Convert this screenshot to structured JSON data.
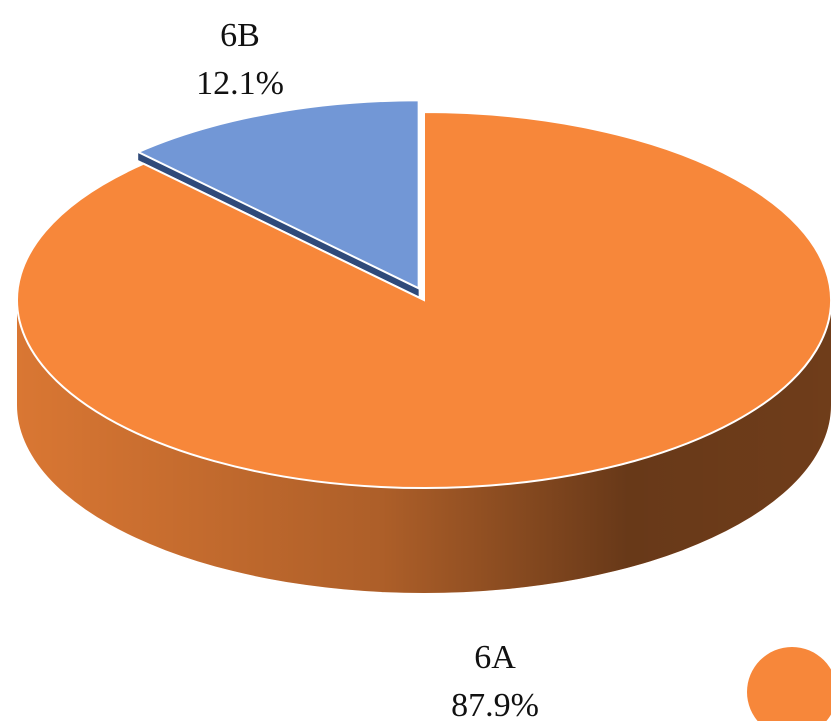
{
  "chart_data": {
    "type": "pie",
    "categories": [
      "6A",
      "6B"
    ],
    "values": [
      87.9,
      12.1
    ],
    "value_labels": [
      "87.9%",
      "12.1%"
    ],
    "colors": [
      "#f7873a",
      "#7297d6"
    ]
  }
}
